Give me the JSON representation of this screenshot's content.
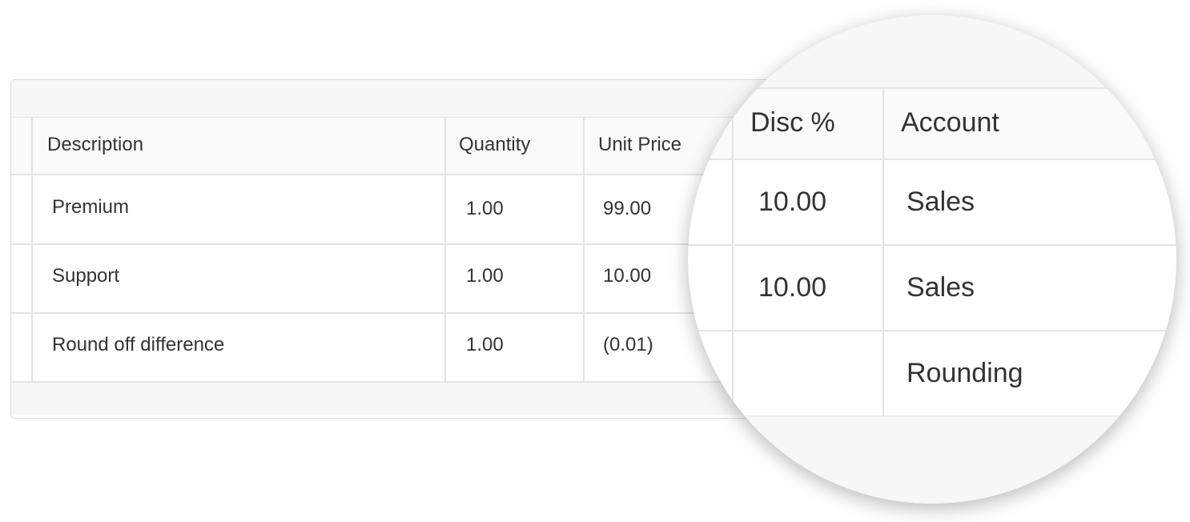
{
  "table": {
    "columns": [
      "Description",
      "Quantity",
      "Unit Price",
      "Disc %",
      "Account"
    ],
    "rows": [
      {
        "description": "Premium",
        "quantity": "1.00",
        "unit_price": "99.00",
        "disc": "10.00",
        "account": "Sales"
      },
      {
        "description": "Support",
        "quantity": "1.00",
        "unit_price": "10.00",
        "disc": "10.00",
        "account": "Sales"
      },
      {
        "description": "Round off difference",
        "quantity": "1.00",
        "unit_price": "(0.01)",
        "disc": "",
        "account": "Rounding"
      }
    ]
  }
}
